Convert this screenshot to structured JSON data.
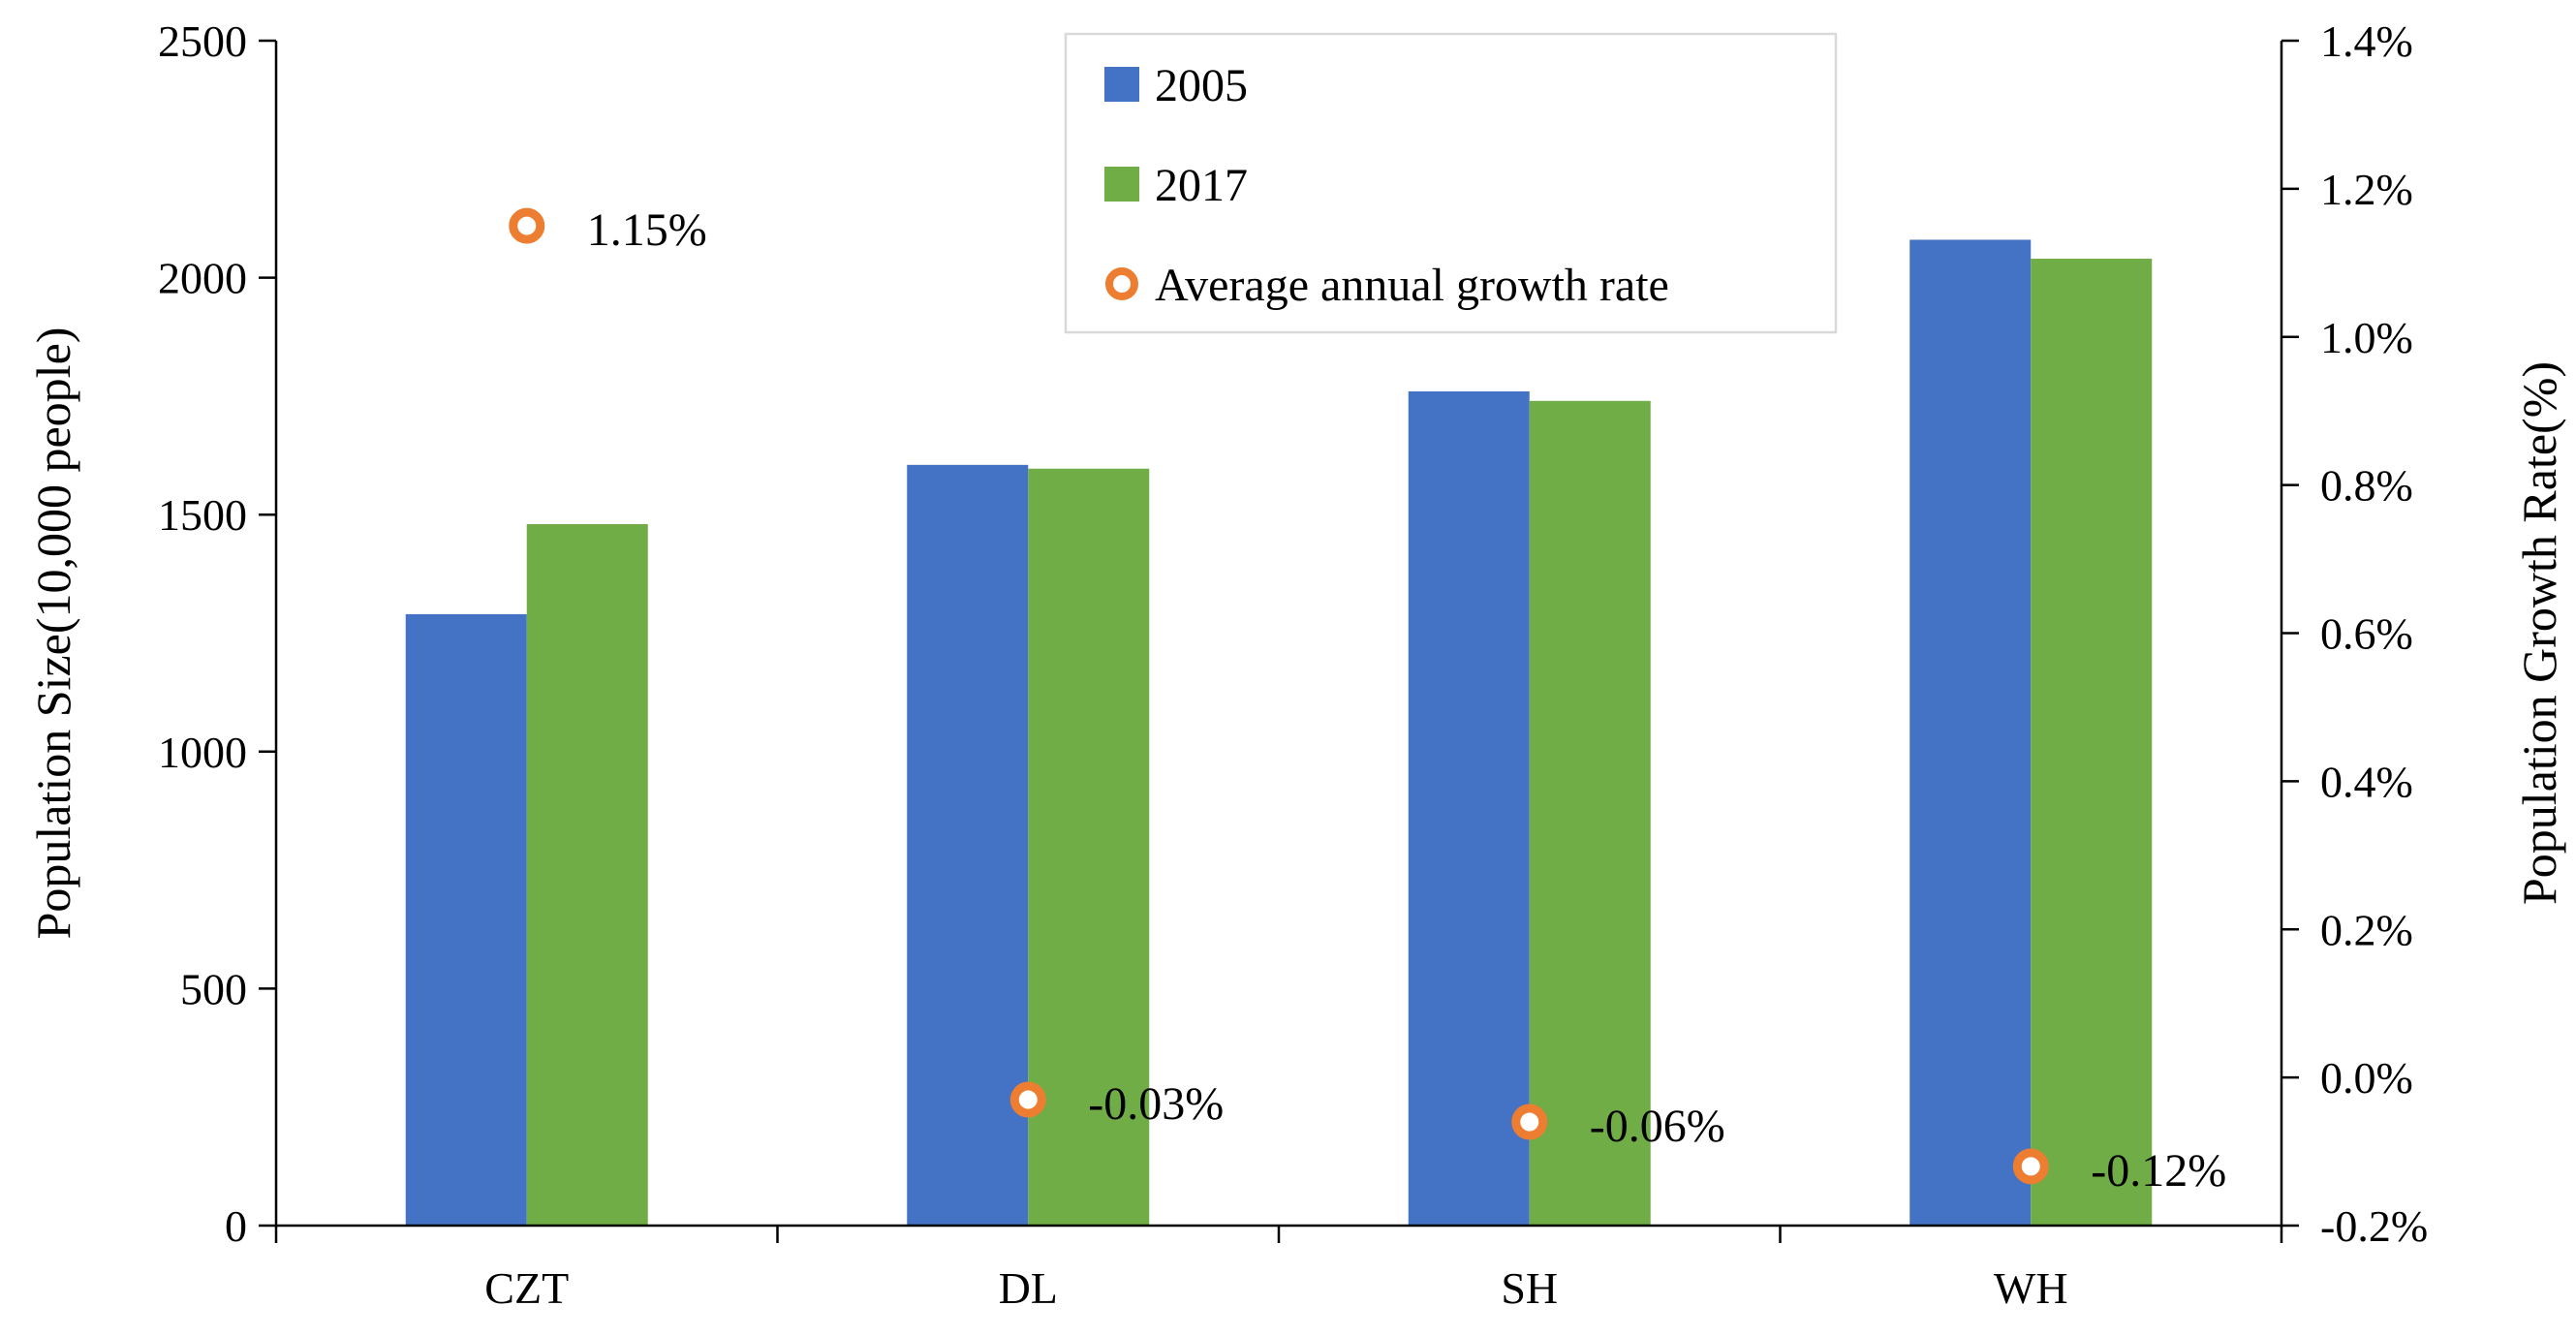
{
  "chart_data": {
    "type": "bar",
    "categories": [
      "CZT",
      "DL",
      "SH",
      "WH"
    ],
    "series": [
      {
        "name": "2005",
        "axis": "left",
        "color": "#4472C4",
        "values": [
          1290,
          1605,
          1760,
          2080
        ]
      },
      {
        "name": "2017",
        "axis": "left",
        "color": "#70AD47",
        "values": [
          1480,
          1597,
          1740,
          2040
        ]
      }
    ],
    "points_series": {
      "name": "Average annual growth rate",
      "axis": "right",
      "type": "scatter",
      "color": "#ED7D31",
      "values": [
        1.15,
        -0.03,
        -0.06,
        -0.12
      ],
      "labels": [
        "1.15%",
        "-0.03%",
        "-0.06%",
        "-0.12%"
      ]
    },
    "title": "",
    "xlabel": "",
    "ylabel": "Population Size(10,000 people)",
    "y2label": "Population Growth Rate(%)",
    "ylim": [
      0,
      2500
    ],
    "yticks": [
      0,
      500,
      1000,
      1500,
      2000,
      2500
    ],
    "ytick_labels": [
      "0",
      "500",
      "1000",
      "1500",
      "2000",
      "2500"
    ],
    "y2lim": [
      -0.2,
      1.4
    ],
    "y2ticks": [
      -0.2,
      0.0,
      0.2,
      0.4,
      0.6,
      0.8,
      1.0,
      1.2,
      1.4
    ],
    "y2tick_labels": [
      "-0.2%",
      "0.0%",
      "0.2%",
      "0.4%",
      "0.6%",
      "0.8%",
      "1.0%",
      "1.2%",
      "1.4%"
    ],
    "legend": {
      "position": "top-center",
      "entries": [
        "2005",
        "2017",
        "Average annual growth rate"
      ]
    },
    "grid": false
  }
}
